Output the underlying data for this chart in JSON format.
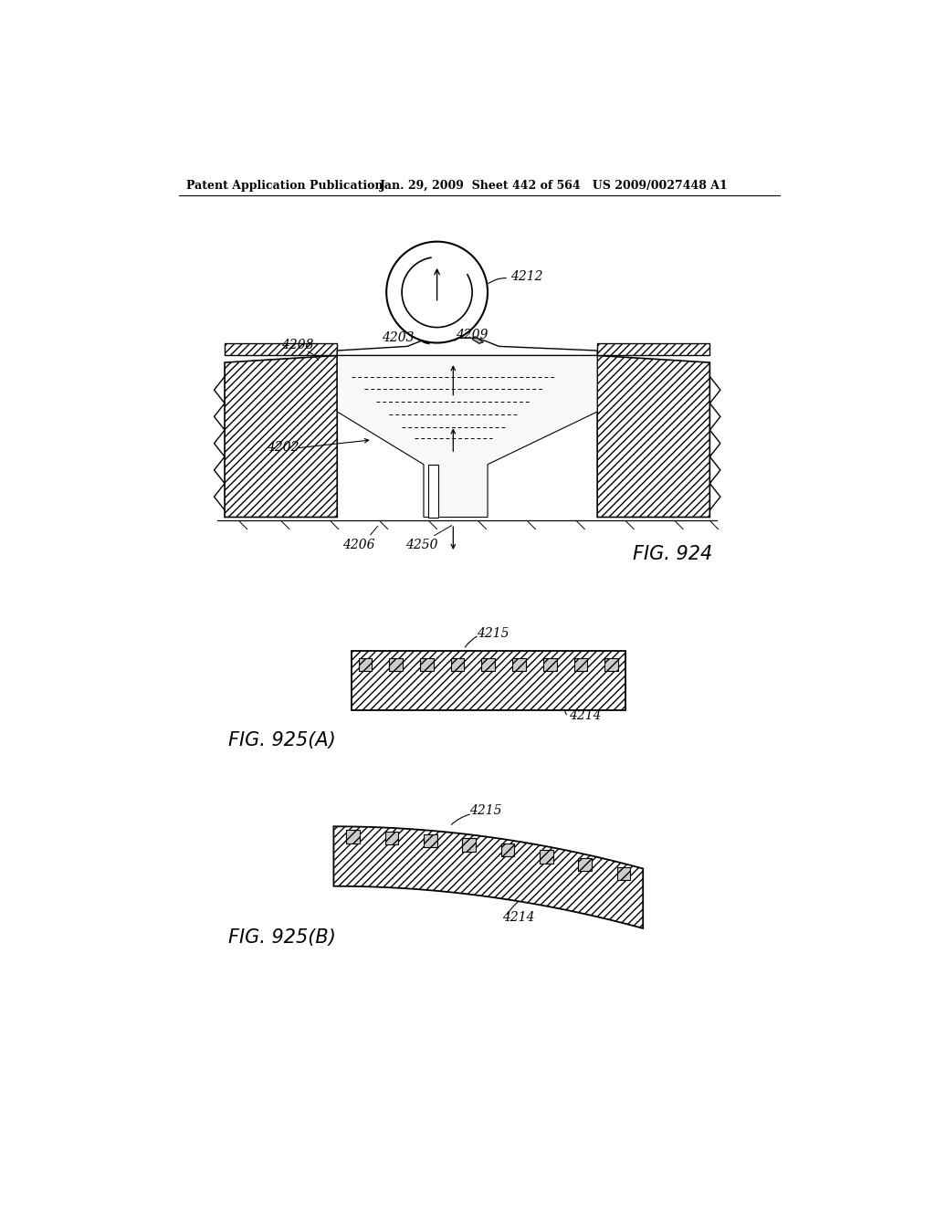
{
  "bg_color": "#ffffff",
  "header_text1": "Patent Application Publication",
  "header_text2": "Jan. 29, 2009  Sheet 442 of 564   US 2009/0027448 A1",
  "fig924_label": "FIG. 924",
  "fig925a_label": "FIG. 925(A)",
  "fig925b_label": "FIG. 925(B)"
}
